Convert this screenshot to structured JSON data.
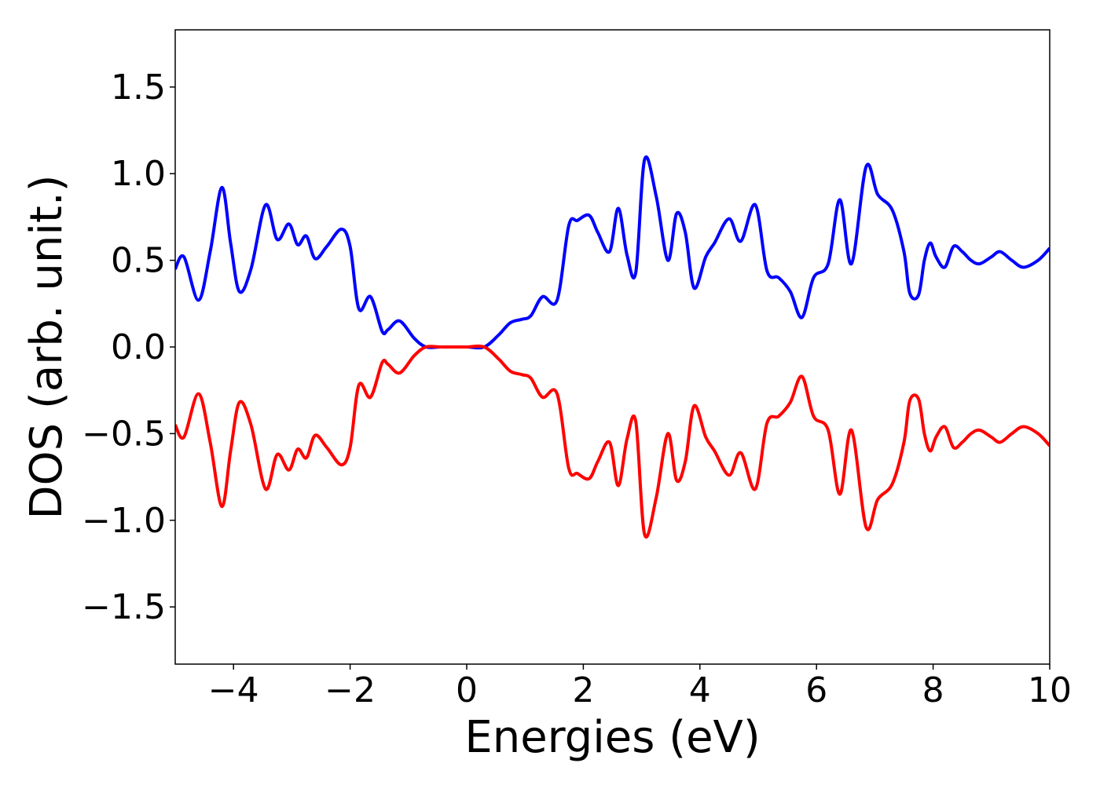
{
  "chart_data": {
    "type": "line",
    "title": "",
    "xlabel": "Energies (eV)",
    "ylabel": "DOS (arb. unit.)",
    "xlim": [
      -5,
      10
    ],
    "ylim": [
      -1.83,
      1.83
    ],
    "xticks": [
      -4,
      -2,
      0,
      2,
      4,
      6,
      8,
      10
    ],
    "xtick_labels": [
      "−4",
      "−2",
      "0",
      "2",
      "4",
      "6",
      "8",
      "10"
    ],
    "yticks": [
      1.5,
      1.0,
      0.5,
      0.0,
      -0.5,
      -1.0,
      -1.5
    ],
    "ytick_labels": [
      "1.5",
      "1.0",
      "0.5",
      "0.0",
      "−0.5",
      "−1.0",
      "−1.5"
    ],
    "grid": false,
    "legend": "none",
    "series": [
      {
        "color": "#0000ff",
        "x": [
          -5.0,
          -4.85,
          -4.6,
          -4.4,
          -4.2,
          -4.05,
          -3.9,
          -3.7,
          -3.45,
          -3.25,
          -3.05,
          -2.9,
          -2.75,
          -2.6,
          -2.4,
          -2.15,
          -2.0,
          -1.85,
          -1.65,
          -1.45,
          -1.35,
          -1.15,
          -0.9,
          -0.7,
          -0.45,
          -0.2,
          0.0,
          0.3,
          0.55,
          0.75,
          0.95,
          1.1,
          1.3,
          1.55,
          1.75,
          1.9,
          2.1,
          2.25,
          2.45,
          2.6,
          2.75,
          2.9,
          3.05,
          3.25,
          3.45,
          3.6,
          3.75,
          3.9,
          4.1,
          4.25,
          4.5,
          4.7,
          4.95,
          5.15,
          5.35,
          5.55,
          5.75,
          5.95,
          6.2,
          6.4,
          6.6,
          6.85,
          7.05,
          7.3,
          7.5,
          7.6,
          7.75,
          7.85,
          7.95,
          8.05,
          8.2,
          8.35,
          8.5,
          8.65,
          8.8,
          9.0,
          9.15,
          9.35,
          9.55,
          9.8,
          10.0
        ],
        "y": [
          0.45,
          0.52,
          0.27,
          0.55,
          0.92,
          0.6,
          0.32,
          0.45,
          0.82,
          0.62,
          0.71,
          0.59,
          0.64,
          0.51,
          0.58,
          0.68,
          0.58,
          0.22,
          0.29,
          0.09,
          0.1,
          0.15,
          0.05,
          0.0,
          0.0,
          0.0,
          0.0,
          0.0,
          0.07,
          0.14,
          0.16,
          0.18,
          0.29,
          0.27,
          0.7,
          0.73,
          0.76,
          0.66,
          0.55,
          0.8,
          0.53,
          0.43,
          1.08,
          0.87,
          0.5,
          0.77,
          0.66,
          0.34,
          0.52,
          0.6,
          0.74,
          0.61,
          0.82,
          0.44,
          0.4,
          0.32,
          0.17,
          0.4,
          0.48,
          0.85,
          0.48,
          1.04,
          0.88,
          0.79,
          0.55,
          0.31,
          0.3,
          0.5,
          0.6,
          0.52,
          0.46,
          0.58,
          0.55,
          0.5,
          0.48,
          0.52,
          0.55,
          0.5,
          0.46,
          0.5,
          0.57
        ]
      },
      {
        "color": "#ff0000",
        "x": [
          -5.0,
          -4.85,
          -4.6,
          -4.4,
          -4.2,
          -4.05,
          -3.9,
          -3.7,
          -3.45,
          -3.25,
          -3.05,
          -2.9,
          -2.75,
          -2.6,
          -2.4,
          -2.15,
          -2.0,
          -1.85,
          -1.65,
          -1.45,
          -1.35,
          -1.15,
          -0.9,
          -0.7,
          -0.45,
          -0.2,
          0.0,
          0.3,
          0.55,
          0.75,
          0.95,
          1.1,
          1.3,
          1.55,
          1.75,
          1.9,
          2.1,
          2.25,
          2.45,
          2.6,
          2.75,
          2.9,
          3.05,
          3.25,
          3.45,
          3.6,
          3.75,
          3.9,
          4.1,
          4.25,
          4.5,
          4.7,
          4.95,
          5.15,
          5.35,
          5.55,
          5.75,
          5.95,
          6.2,
          6.4,
          6.6,
          6.85,
          7.05,
          7.3,
          7.5,
          7.6,
          7.75,
          7.85,
          7.95,
          8.05,
          8.2,
          8.35,
          8.5,
          8.65,
          8.8,
          9.0,
          9.15,
          9.35,
          9.55,
          9.8,
          10.0
        ],
        "y": [
          -0.45,
          -0.52,
          -0.27,
          -0.55,
          -0.92,
          -0.6,
          -0.32,
          -0.45,
          -0.82,
          -0.62,
          -0.71,
          -0.59,
          -0.64,
          -0.51,
          -0.58,
          -0.68,
          -0.58,
          -0.22,
          -0.29,
          -0.09,
          -0.1,
          -0.15,
          -0.05,
          0.0,
          0.0,
          0.0,
          0.0,
          0.0,
          -0.07,
          -0.14,
          -0.16,
          -0.18,
          -0.29,
          -0.27,
          -0.7,
          -0.73,
          -0.76,
          -0.66,
          -0.55,
          -0.8,
          -0.53,
          -0.43,
          -1.08,
          -0.87,
          -0.5,
          -0.77,
          -0.66,
          -0.34,
          -0.52,
          -0.6,
          -0.74,
          -0.61,
          -0.82,
          -0.44,
          -0.4,
          -0.32,
          -0.17,
          -0.4,
          -0.48,
          -0.85,
          -0.48,
          -1.04,
          -0.88,
          -0.79,
          -0.55,
          -0.31,
          -0.3,
          -0.5,
          -0.6,
          -0.52,
          -0.46,
          -0.58,
          -0.55,
          -0.5,
          -0.48,
          -0.52,
          -0.55,
          -0.5,
          -0.46,
          -0.5,
          -0.57
        ]
      }
    ]
  }
}
